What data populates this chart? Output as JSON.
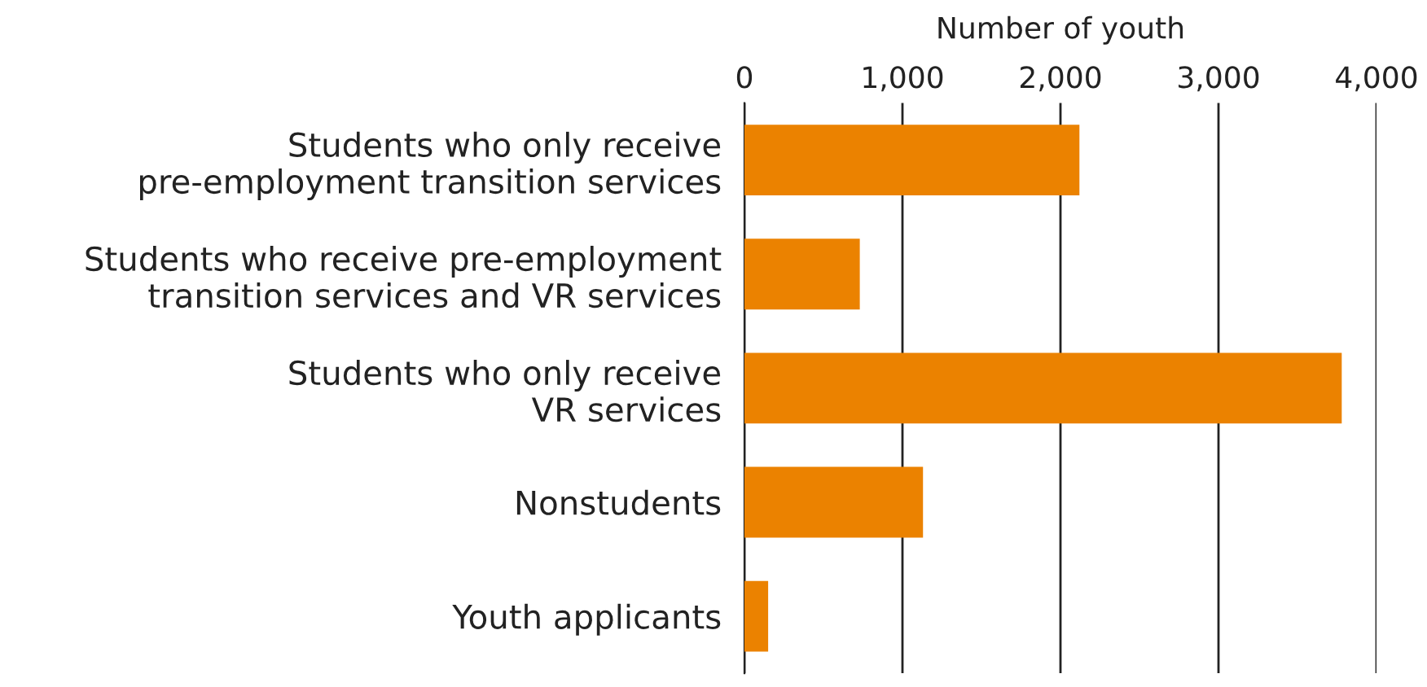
{
  "chart_data": {
    "type": "bar",
    "orientation": "horizontal",
    "xlabel": "Number of youth",
    "categories": [
      "Students who only receive\npre-employment transition services",
      "Students who receive pre-employment\ntransition services and VR services",
      "Students who only receive\nVR services",
      "Nonstudents",
      "Youth applicants"
    ],
    "values": [
      2120,
      730,
      3780,
      1130,
      150
    ],
    "color": "#eb8200",
    "xlim": [
      0,
      4000
    ],
    "xticks": [
      0,
      {
        "value": 1000,
        "label": "1,000"
      },
      {
        "value": 2000,
        "label": "2,000"
      },
      {
        "value": 3000,
        "label": "3,000"
      },
      {
        "value": 4000,
        "label": "4,000"
      }
    ],
    "grid": "x"
  }
}
